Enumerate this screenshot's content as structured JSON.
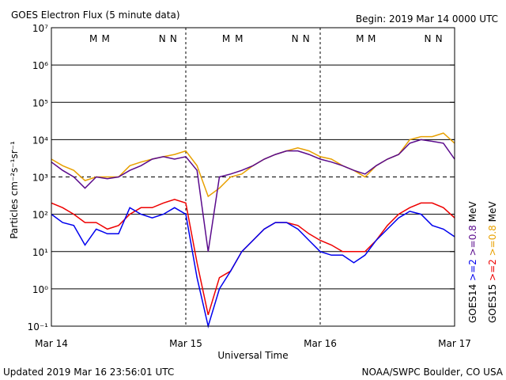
{
  "chart_data": {
    "type": "line",
    "title": "GOES Electron Flux (5 minute data)",
    "begin": "Begin: 2019 Mar 14 0000 UTC",
    "xlabel": "Universal Time",
    "ylabel": "Particles cm⁻²s⁻¹sr⁻¹",
    "updated": "Updated 2019 Mar 16 23:56:01 UTC",
    "credit": "NOAA/SWPC Boulder, CO USA",
    "log_scale": true,
    "grid": true,
    "threshold_line": 1000,
    "xlim": [
      0,
      72
    ],
    "xticks": [
      {
        "value": 0,
        "label": "Mar 14"
      },
      {
        "value": 24,
        "label": "Mar 15"
      },
      {
        "value": 48,
        "label": "Mar 16"
      },
      {
        "value": 72,
        "label": "Mar 17"
      }
    ],
    "ylim": [
      0.1,
      10000000
    ],
    "yticks": [
      {
        "value": 0.1,
        "label": "10⁻¹"
      },
      {
        "value": 1,
        "label": "10⁰"
      },
      {
        "value": 10,
        "label": "10¹"
      },
      {
        "value": 100,
        "label": "10²"
      },
      {
        "value": 1000,
        "label": "10³"
      },
      {
        "value": 10000,
        "label": "10⁴"
      },
      {
        "value": 100000,
        "label": "10⁵"
      },
      {
        "value": 1000000,
        "label": "10⁶"
      },
      {
        "value": 10000000,
        "label": "10⁷"
      }
    ],
    "x": [
      0,
      2,
      4,
      6,
      8,
      10,
      12,
      14,
      16,
      18,
      20,
      22,
      24,
      26,
      28,
      30,
      32,
      34,
      36,
      38,
      40,
      42,
      44,
      46,
      48,
      50,
      52,
      54,
      56,
      58,
      60,
      62,
      64,
      66,
      68,
      70,
      72
    ],
    "legend": [
      {
        "satellite": "GOES14",
        "unit": "MeV"
      },
      {
        "satellite": "GOES15",
        "unit": "MeV"
      }
    ],
    "series": [
      {
        "name": ">=0.8",
        "satellite": "GOES15",
        "color": "#e8a000",
        "values": [
          3000,
          2000,
          1500,
          800,
          1000,
          1000,
          1000,
          2000,
          2500,
          3000,
          3500,
          4000,
          5000,
          2000,
          300,
          500,
          1000,
          1200,
          2000,
          3000,
          4000,
          5000,
          6000,
          5000,
          3500,
          3000,
          2000,
          1500,
          1000,
          2000,
          3000,
          4000,
          10000,
          12000,
          12000,
          15000,
          8000
        ]
      },
      {
        "name": ">=0.8",
        "satellite": "GOES14",
        "color": "#5a0a8c",
        "values": [
          2500,
          1500,
          1000,
          500,
          1000,
          900,
          1000,
          1500,
          2000,
          3000,
          3500,
          3000,
          3500,
          1500,
          10,
          1000,
          1200,
          1500,
          2000,
          3000,
          4000,
          5000,
          5000,
          4000,
          3000,
          2500,
          2000,
          1500,
          1200,
          2000,
          3000,
          4000,
          8000,
          10000,
          9000,
          8000,
          3000
        ]
      },
      {
        "name": ">=2",
        "satellite": "GOES15",
        "color": "#ee0000",
        "values": [
          200,
          150,
          100,
          60,
          60,
          40,
          50,
          100,
          150,
          150,
          200,
          250,
          200,
          5,
          0.2,
          2,
          3,
          10,
          20,
          40,
          60,
          60,
          50,
          30,
          20,
          15,
          10,
          10,
          10,
          20,
          50,
          100,
          150,
          200,
          200,
          150,
          80
        ]
      },
      {
        "name": ">=2",
        "satellite": "GOES14",
        "color": "#0000ee",
        "values": [
          100,
          60,
          50,
          15,
          40,
          30,
          30,
          150,
          100,
          80,
          100,
          150,
          100,
          2,
          0.1,
          1,
          3,
          10,
          20,
          40,
          60,
          60,
          40,
          20,
          10,
          8,
          8,
          5,
          8,
          20,
          40,
          80,
          120,
          100,
          50,
          40,
          25
        ]
      }
    ],
    "annotations": [
      {
        "text": "M",
        "x": 7.5,
        "color": "#0000ee"
      },
      {
        "text": "M",
        "x": 9.7,
        "color": "#ee0000"
      },
      {
        "text": "N",
        "x": 19.8,
        "color": "#0000ee"
      },
      {
        "text": "N",
        "x": 21.8,
        "color": "#ee0000"
      },
      {
        "text": "M",
        "x": 31.2,
        "color": "#0000ee"
      },
      {
        "text": "M",
        "x": 33.5,
        "color": "#ee0000"
      },
      {
        "text": "N",
        "x": 43.5,
        "color": "#0000ee"
      },
      {
        "text": "N",
        "x": 45.5,
        "color": "#ee0000"
      },
      {
        "text": "M",
        "x": 55.1,
        "color": "#0000ee"
      },
      {
        "text": "M",
        "x": 57.2,
        "color": "#ee0000"
      },
      {
        "text": "N",
        "x": 67.2,
        "color": "#0000ee"
      },
      {
        "text": "N",
        "x": 69.2,
        "color": "#ee0000"
      }
    ]
  }
}
